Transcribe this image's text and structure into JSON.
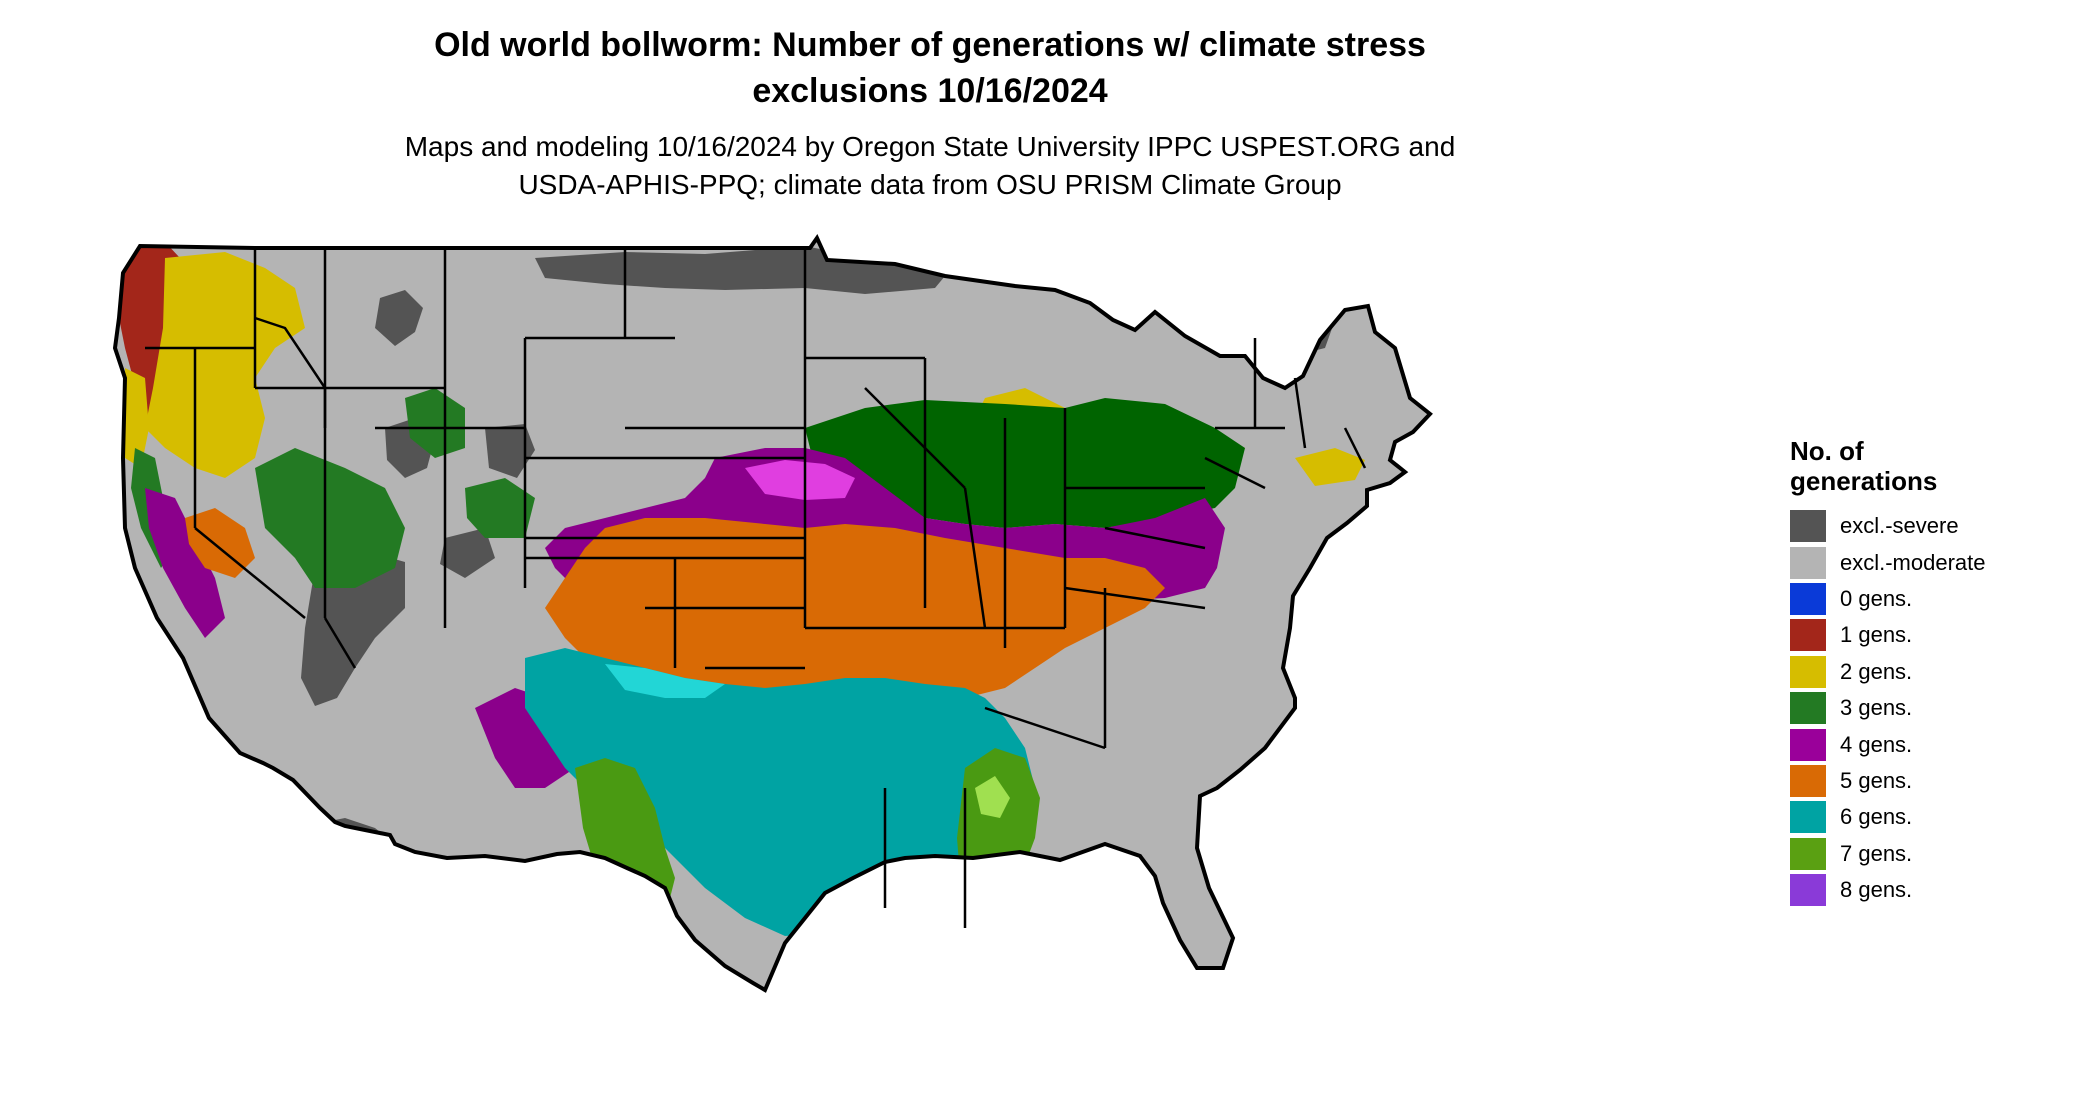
{
  "title_line1": "Old world bollworm: Number of generations w/ climate stress",
  "title_line2": "exclusions 10/16/2024",
  "subtitle_line1": "Maps and modeling 10/16/2024 by Oregon State University IPPC USPEST.ORG and",
  "subtitle_line2": "USDA-APHIS-PPQ; climate data from OSU PRISM Climate Group",
  "legend": {
    "title_line1": "No. of",
    "title_line2": "generations",
    "items": [
      {
        "label": "excl.-severe",
        "color": "#545454"
      },
      {
        "label": "excl.-moderate",
        "color": "#b4b4b4"
      },
      {
        "label": "0 gens.",
        "color": "#0a3ad8"
      },
      {
        "label": "1 gens.",
        "color": "#a3261a"
      },
      {
        "label": "2 gens.",
        "color": "#d6bd00"
      },
      {
        "label": "3 gens.",
        "color": "#237a23"
      },
      {
        "label": "4 gens.",
        "color": "#9a009a"
      },
      {
        "label": "5 gens.",
        "color": "#d96a05"
      },
      {
        "label": "6 gens.",
        "color": "#00a3a3"
      },
      {
        "label": "7 gens.",
        "color": "#5aa012"
      },
      {
        "label": "8 gens.",
        "color": "#8a3ad8"
      }
    ]
  },
  "map_colors": {
    "severe": "#545454",
    "moderate": "#b4b4b4",
    "gen1": "#a3261a",
    "gen2": "#d6bd00",
    "gen3": "#237a23",
    "gen3dark": "#006400",
    "gen4": "#8b008b",
    "gen4light": "#e03ee0",
    "gen5": "#d96a05",
    "gen6": "#00a3a3",
    "gen6light": "#22d6d6",
    "gen7": "#4a9a12",
    "gen7light": "#a0e050",
    "border": "#000000"
  }
}
